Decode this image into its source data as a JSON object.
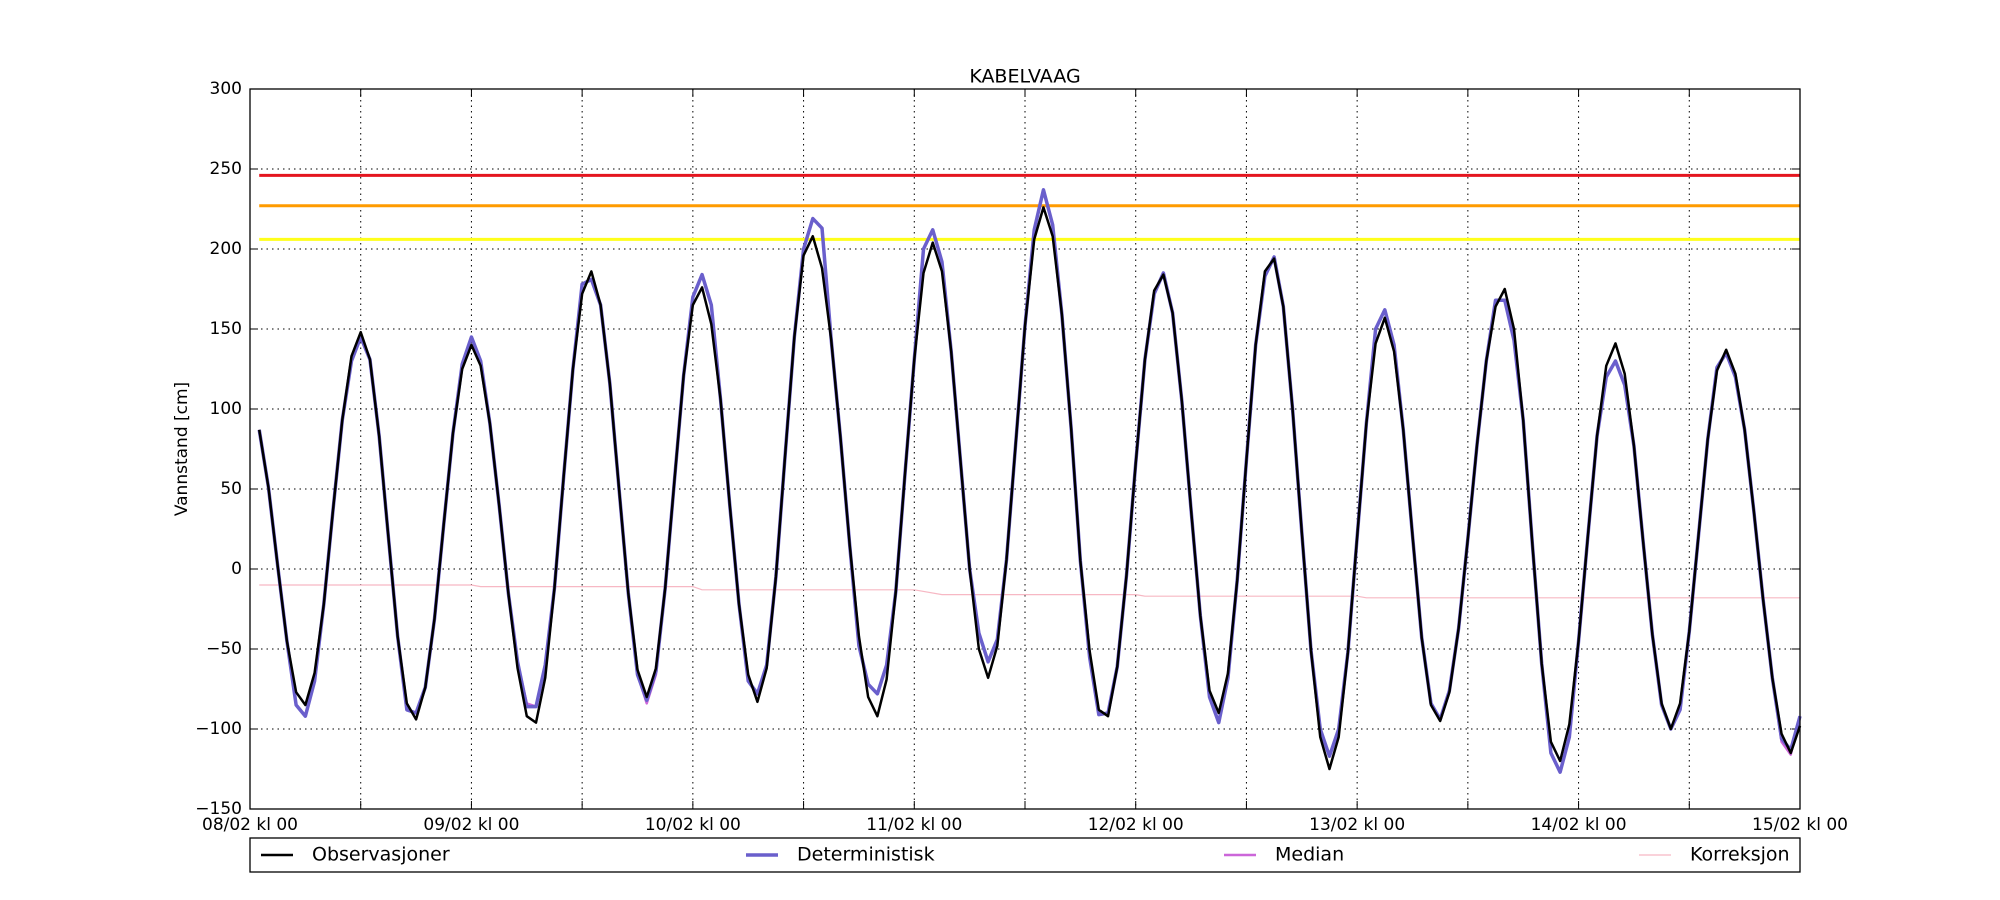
{
  "chart_data": {
    "type": "line",
    "title": "KABELVAAG",
    "y_label": "Vannstand [cm]",
    "xlim": [
      0,
      168
    ],
    "xticks": [
      {
        "value": 0,
        "label": "08/02 kl 00"
      },
      {
        "value": 24,
        "label": "09/02 kl 00"
      },
      {
        "value": 48,
        "label": "10/02 kl 00"
      },
      {
        "value": 72,
        "label": "11/02 kl 00"
      },
      {
        "value": 96,
        "label": "12/02 kl 00"
      },
      {
        "value": 120,
        "label": "13/02 kl 00"
      },
      {
        "value": 144,
        "label": "14/02 kl 00"
      },
      {
        "value": 168,
        "label": "15/02 kl 00"
      }
    ],
    "xminorticks": [
      12,
      36,
      60,
      84,
      108,
      132,
      156
    ],
    "ylim": [
      -150,
      300
    ],
    "yticks": [
      {
        "value": -150,
        "label": "−150"
      },
      {
        "value": -100,
        "label": "−100"
      },
      {
        "value": -50,
        "label": "−50"
      },
      0,
      50,
      100,
      150,
      200,
      250,
      300
    ],
    "grid": true,
    "thresholds": [
      {
        "value": 246,
        "color": "#e4151f"
      },
      {
        "value": 227,
        "color": "#ff9b00"
      },
      {
        "value": 206,
        "color": "#ffff1a"
      }
    ],
    "x": [
      1,
      2,
      3,
      4,
      5,
      6,
      7,
      8,
      9,
      10,
      11,
      12,
      13,
      14,
      15,
      16,
      17,
      18,
      19,
      20,
      21,
      22,
      23,
      24,
      25,
      26,
      27,
      28,
      29,
      30,
      31,
      32,
      33,
      34,
      35,
      36,
      37,
      38,
      39,
      40,
      41,
      42,
      43,
      44,
      45,
      46,
      47,
      48,
      49,
      50,
      51,
      52,
      53,
      54,
      55,
      56,
      57,
      58,
      59,
      60,
      61,
      62,
      63,
      64,
      65,
      66,
      67,
      68,
      69,
      70,
      71,
      72,
      73,
      74,
      75,
      76,
      77,
      78,
      79,
      80,
      81,
      82,
      83,
      84,
      85,
      86,
      87,
      88,
      89,
      90,
      91,
      92,
      93,
      94,
      95,
      96,
      97,
      98,
      99,
      100,
      101,
      102,
      103,
      104,
      105,
      106,
      107,
      108,
      109,
      110,
      111,
      112,
      113,
      114,
      115,
      116,
      117,
      118,
      119,
      120,
      121,
      122,
      123,
      124,
      125,
      126,
      127,
      128,
      129,
      130,
      131,
      132,
      133,
      134,
      135,
      136,
      137,
      138,
      139,
      140,
      141,
      142,
      143,
      144,
      145,
      146,
      147,
      148,
      149,
      150,
      151,
      152,
      153,
      154,
      155,
      156,
      157,
      158,
      159,
      160,
      161,
      162,
      163,
      164,
      165,
      166,
      167,
      168
    ],
    "series": [
      {
        "name": "Observasjoner",
        "color": "#000000",
        "width": 2.5,
        "values": [
          87,
          51,
          2,
          -45,
          -77,
          -85,
          -65,
          -22,
          37,
          93,
          133,
          148,
          131,
          83,
          20,
          -42,
          -84,
          -94,
          -74,
          -31,
          28,
          85,
          125,
          140,
          127,
          91,
          40,
          -15,
          -62,
          -92,
          -96,
          -68,
          -12,
          58,
          125,
          172,
          186,
          165,
          116,
          50,
          -15,
          -63,
          -80,
          -62,
          -12,
          55,
          121,
          165,
          176,
          153,
          106,
          40,
          -22,
          -66,
          -83,
          -62,
          -5,
          71,
          145,
          196,
          208,
          188,
          143,
          82,
          15,
          -42,
          -80,
          -92,
          -69,
          -14,
          60,
          131,
          185,
          204,
          186,
          136,
          68,
          0,
          -50,
          -68,
          -48,
          6,
          79,
          152,
          206,
          226,
          208,
          159,
          88,
          5,
          -51,
          -88,
          -92,
          -61,
          -4,
          66,
          131,
          174,
          184,
          160,
          105,
          37,
          -29,
          -76,
          -90,
          -65,
          -7,
          68,
          140,
          186,
          194,
          164,
          100,
          23,
          -51,
          -105,
          -125,
          -105,
          -52,
          20,
          91,
          141,
          157,
          136,
          87,
          21,
          -43,
          -85,
          -95,
          -77,
          -37,
          19,
          78,
          130,
          164,
          175,
          150,
          93,
          15,
          -59,
          -108,
          -120,
          -97,
          -45,
          20,
          83,
          127,
          141,
          122,
          77,
          17,
          -41,
          -84,
          -100,
          -84,
          -39,
          21,
          81,
          124,
          137,
          122,
          87,
          36,
          -19,
          -68,
          -103,
          -115,
          -98
        ]
      },
      {
        "name": "Deterministisk",
        "color": "#6a5fcc",
        "width": 3.5,
        "values": [
          87,
          51,
          2,
          -45,
          -85,
          -92,
          -70,
          -22,
          37,
          93,
          130,
          145,
          131,
          83,
          20,
          -42,
          -88,
          -90,
          -74,
          -31,
          28,
          85,
          128,
          145,
          130,
          91,
          40,
          -15,
          -58,
          -86,
          -86,
          -60,
          -12,
          58,
          125,
          178,
          181,
          165,
          116,
          50,
          -15,
          -66,
          -82,
          -64,
          -12,
          55,
          121,
          170,
          184,
          165,
          106,
          40,
          -22,
          -70,
          -78,
          -60,
          -5,
          71,
          145,
          200,
          219,
          213,
          143,
          82,
          15,
          -48,
          -72,
          -78,
          -60,
          -14,
          60,
          131,
          200,
          212,
          192,
          136,
          68,
          0,
          -40,
          -58,
          -44,
          6,
          79,
          152,
          212,
          237,
          215,
          159,
          88,
          5,
          -55,
          -91,
          -90,
          -61,
          -4,
          66,
          131,
          172,
          185,
          160,
          105,
          37,
          -29,
          -80,
          -96,
          -68,
          -7,
          68,
          140,
          183,
          195,
          164,
          100,
          23,
          -51,
          -100,
          -117,
          -100,
          -52,
          20,
          91,
          150,
          162,
          140,
          87,
          21,
          -43,
          -84,
          -94,
          -76,
          -37,
          19,
          78,
          130,
          168,
          168,
          143,
          93,
          15,
          -59,
          -115,
          -127,
          -105,
          -45,
          20,
          83,
          120,
          130,
          115,
          77,
          17,
          -41,
          -85,
          -100,
          -88,
          -39,
          21,
          81,
          126,
          135,
          120,
          87,
          36,
          -19,
          -68,
          -106,
          -113,
          -92
        ]
      },
      {
        "name": "Median",
        "color": "#cc66d9",
        "width": 2.5,
        "values": [
          87,
          51,
          2,
          -45,
          -85,
          -92,
          -70,
          -22,
          37,
          93,
          130,
          145,
          131,
          83,
          20,
          -42,
          -88,
          -90,
          -74,
          -31,
          28,
          85,
          128,
          145,
          130,
          91,
          40,
          -15,
          -58,
          -84,
          -86,
          -60,
          -12,
          58,
          125,
          178,
          181,
          165,
          116,
          50,
          -15,
          -66,
          -84,
          -66,
          -12,
          55,
          121,
          170,
          184,
          165,
          106,
          40,
          -22,
          -70,
          -78,
          -60,
          -5,
          71,
          145,
          200,
          219,
          213,
          143,
          82,
          15,
          -48,
          -72,
          -78,
          -60,
          -14,
          60,
          131,
          200,
          212,
          192,
          136,
          68,
          0,
          -40,
          -58,
          -44,
          6,
          79,
          152,
          212,
          237,
          215,
          159,
          88,
          5,
          -55,
          -91,
          -90,
          -61,
          -4,
          66,
          131,
          172,
          185,
          160,
          105,
          37,
          -29,
          -80,
          -96,
          -68,
          -7,
          68,
          140,
          183,
          195,
          164,
          100,
          23,
          -51,
          -100,
          -117,
          -100,
          -52,
          20,
          91,
          150,
          162,
          140,
          87,
          21,
          -43,
          -84,
          -94,
          -76,
          -37,
          19,
          78,
          130,
          168,
          168,
          143,
          93,
          15,
          -59,
          -115,
          -127,
          -105,
          -45,
          20,
          83,
          120,
          130,
          115,
          77,
          17,
          -41,
          -85,
          -100,
          -88,
          -39,
          21,
          81,
          126,
          135,
          120,
          87,
          36,
          -19,
          -68,
          -108,
          -116,
          -92
        ]
      },
      {
        "name": "Korreksjon",
        "color": "#f7b8c4",
        "width": 1.2,
        "x": [
          1,
          24,
          25,
          48,
          49,
          72,
          75,
          96,
          97,
          120,
          121,
          168
        ],
        "values": [
          -10,
          -10,
          -11,
          -11,
          -13,
          -13,
          -16,
          -16,
          -17,
          -17,
          -18,
          -18
        ]
      }
    ]
  }
}
